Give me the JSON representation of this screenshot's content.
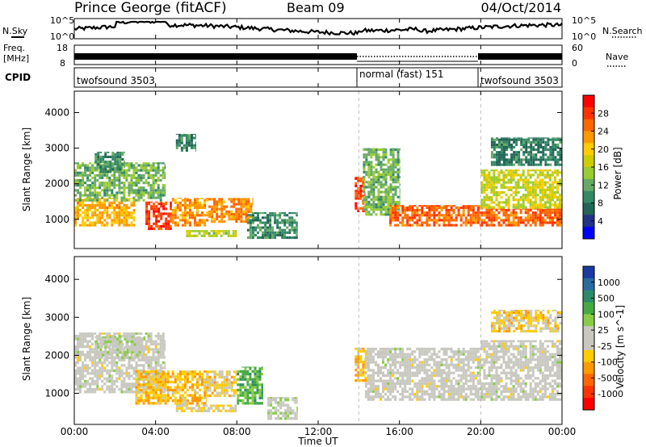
{
  "header": {
    "station": "Prince George (fitACF)",
    "beam": "Beam 09",
    "date": "04/Oct/2014"
  },
  "noise_panel": {
    "left_label": "N.Sky",
    "right_label": "N.Search",
    "left_ticks": [
      "10^5",
      "10^0"
    ],
    "right_ticks": [
      "10^5",
      "10^0"
    ]
  },
  "freq_panel": {
    "left_label_1": "Freq.",
    "left_label_2": "[MHz]",
    "right_label": "Nave",
    "left_ticks": [
      "18",
      "8"
    ],
    "right_ticks": [
      "60",
      "0"
    ]
  },
  "cpid_panel": {
    "label": "CPID",
    "segments": [
      {
        "name": "twofsound 3503",
        "start_hr": 0,
        "end_hr": 14
      },
      {
        "name": "normal (fast) 151",
        "start_hr": 14,
        "end_hr": 20
      },
      {
        "name": "twofsound 3503",
        "start_hr": 20,
        "end_hr": 24
      }
    ]
  },
  "x_axis": {
    "label": "Time UT",
    "range_hr": [
      0,
      24
    ],
    "ticks": [
      "00:00",
      "04:00",
      "08:00",
      "12:00",
      "16:00",
      "20:00",
      "00:00"
    ]
  },
  "power_panel": {
    "ylabel": "Slant Range [km]",
    "yticks": [
      "4000",
      "3000",
      "2000",
      "1000"
    ],
    "colorbar_label": "Power [dB]",
    "colorbar_ticks": [
      "28",
      "24",
      "20",
      "16",
      "12",
      "8",
      "4"
    ],
    "colorbar_colors": [
      "#ff0000",
      "#ff3300",
      "#ff6600",
      "#ff9900",
      "#ffcc00",
      "#cccc00",
      "#99cc33",
      "#66aa66",
      "#338866",
      "#226655",
      "#223388",
      "#0000ff"
    ]
  },
  "velocity_panel": {
    "ylabel": "Slant Range [km]",
    "yticks": [
      "4000",
      "3000",
      "2000",
      "1000"
    ],
    "colorbar_label": "Velocity [m s^-1]",
    "colorbar_ticks": [
      "1000",
      "500",
      "100",
      "25",
      "-25",
      "-100",
      "-500",
      "-1000"
    ],
    "colorbar_colors": [
      "#1a3aa0",
      "#2a6aa0",
      "#2f8a6a",
      "#44aa44",
      "#88cc44",
      "#c8c8c0",
      "#c8c8c0",
      "#ffcc00",
      "#ff9900",
      "#ff6600",
      "#ff3300",
      "#ff0000"
    ]
  },
  "chart_data": [
    {
      "type": "heatmap",
      "title": "Power",
      "xlabel": "Time UT",
      "ylabel": "Slant Range [km]",
      "xlim": [
        0,
        24
      ],
      "ylim": [
        180,
        4600
      ],
      "color_range": [
        0,
        30
      ],
      "unit": "dB",
      "regions": [
        {
          "t0": 0.0,
          "t1": 3.0,
          "r0": 800,
          "r1": 1600,
          "value": 20
        },
        {
          "t0": 0.0,
          "t1": 4.5,
          "r0": 1500,
          "r1": 2600,
          "value": 12
        },
        {
          "t0": 1.0,
          "t1": 2.5,
          "r0": 2300,
          "r1": 2900,
          "value": 9
        },
        {
          "t0": 3.5,
          "t1": 4.8,
          "r0": 700,
          "r1": 1500,
          "value": 26
        },
        {
          "t0": 4.8,
          "t1": 6.6,
          "r0": 800,
          "r1": 1600,
          "value": 21
        },
        {
          "t0": 6.6,
          "t1": 8.8,
          "r0": 900,
          "r1": 1600,
          "value": 22
        },
        {
          "t0": 5.5,
          "t1": 8.0,
          "r0": 500,
          "r1": 700,
          "value": 15
        },
        {
          "t0": 8.5,
          "t1": 11.0,
          "r0": 450,
          "r1": 1200,
          "value": 9
        },
        {
          "t0": 5.0,
          "t1": 6.0,
          "r0": 2900,
          "r1": 3400,
          "value": 8
        },
        {
          "t0": 13.8,
          "t1": 14.3,
          "r0": 1200,
          "r1": 2200,
          "value": 26
        },
        {
          "t0": 14.2,
          "t1": 16.0,
          "r0": 1100,
          "r1": 3000,
          "value": 12
        },
        {
          "t0": 15.5,
          "t1": 20.0,
          "r0": 800,
          "r1": 1400,
          "value": 24
        },
        {
          "t0": 20.0,
          "t1": 24.0,
          "r0": 800,
          "r1": 1300,
          "value": 24
        },
        {
          "t0": 20.0,
          "t1": 24.0,
          "r0": 1300,
          "r1": 2400,
          "value": 16
        },
        {
          "t0": 20.5,
          "t1": 24.0,
          "r0": 2500,
          "r1": 3300,
          "value": 8
        }
      ]
    },
    {
      "type": "heatmap",
      "title": "Velocity",
      "xlabel": "Time UT",
      "ylabel": "Slant Range [km]",
      "xlim": [
        0,
        24
      ],
      "ylim": [
        180,
        4600
      ],
      "color_range": [
        -1000,
        1000
      ],
      "unit": "m s^-1",
      "regions": [
        {
          "t0": 0.0,
          "t1": 4.5,
          "r0": 1000,
          "r1": 2600,
          "value": 0
        },
        {
          "t0": 1.0,
          "t1": 3.5,
          "r0": 1900,
          "r1": 2500,
          "value": 80
        },
        {
          "t0": 3.0,
          "t1": 6.5,
          "r0": 700,
          "r1": 1600,
          "value": -300
        },
        {
          "t0": 6.5,
          "t1": 8.0,
          "r0": 900,
          "r1": 1600,
          "value": -200
        },
        {
          "t0": 8.0,
          "t1": 9.3,
          "r0": 700,
          "r1": 1700,
          "value": 400
        },
        {
          "t0": 5.0,
          "t1": 8.0,
          "r0": 500,
          "r1": 700,
          "value": -150
        },
        {
          "t0": 9.5,
          "t1": 11.0,
          "r0": 300,
          "r1": 900,
          "value": 60
        },
        {
          "t0": 13.8,
          "t1": 14.5,
          "r0": 1300,
          "r1": 2200,
          "value": -300
        },
        {
          "t0": 14.3,
          "t1": 20.0,
          "r0": 800,
          "r1": 2200,
          "value": 0
        },
        {
          "t0": 20.0,
          "t1": 24.0,
          "r0": 800,
          "r1": 2400,
          "value": 0
        },
        {
          "t0": 20.5,
          "t1": 24.0,
          "r0": 2600,
          "r1": 3200,
          "value": -200
        }
      ]
    }
  ]
}
